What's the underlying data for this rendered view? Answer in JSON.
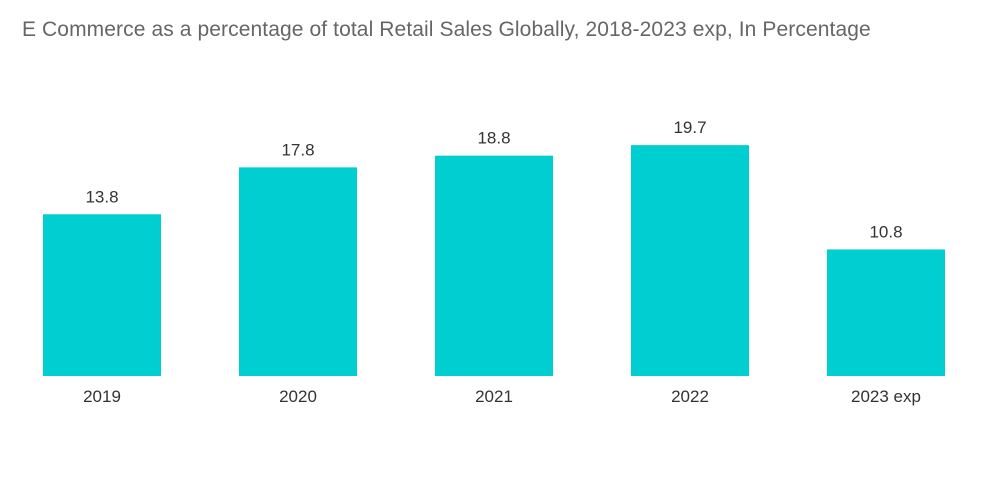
{
  "chart_data": {
    "type": "bar",
    "title": "E Commerce as a percentage of total Retail Sales Globally, 2018-2023 exp, In Percentage",
    "categories": [
      "2019",
      "2020",
      "2021",
      "2022",
      "2023 exp"
    ],
    "values": [
      13.8,
      17.8,
      18.8,
      19.7,
      10.8
    ],
    "data_labels": [
      "13.8",
      "17.8",
      "18.8",
      "19.7",
      "10.8"
    ],
    "xlabel": "",
    "ylabel": "",
    "ylim": [
      0,
      20
    ],
    "grid": false,
    "legend": "none",
    "bar_color": "#00ced1"
  }
}
